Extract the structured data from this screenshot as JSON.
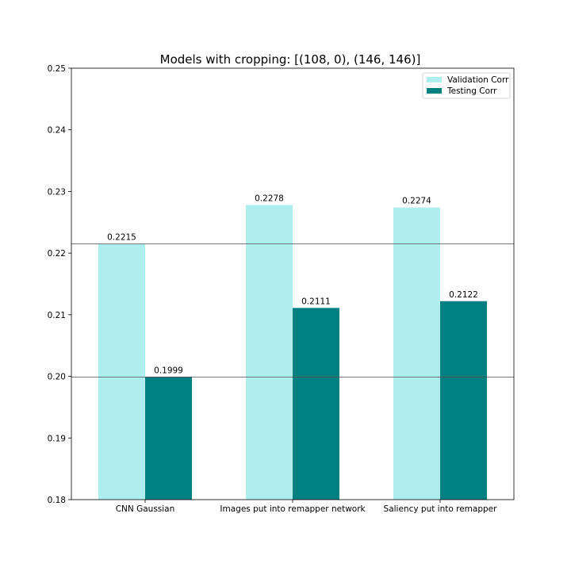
{
  "chart_data": {
    "type": "bar",
    "title": "Models with cropping: [(108, 0), (146, 146)]",
    "xlabel": "",
    "ylabel": "",
    "categories": [
      "CNN Gaussian",
      "Images put into remapper network",
      "Saliency put into remapper"
    ],
    "series": [
      {
        "name": "Validation Corr",
        "color": "#afeeee",
        "values": [
          0.2215,
          0.2278,
          0.2274
        ],
        "labels": [
          "0.2215",
          "0.2278",
          "0.2274"
        ]
      },
      {
        "name": "Testing Corr",
        "color": "#008080",
        "values": [
          0.1999,
          0.2111,
          0.2122
        ],
        "labels": [
          "0.1999",
          "0.2111",
          "0.2122"
        ]
      }
    ],
    "ylim": [
      0.18,
      0.25
    ],
    "yticks": [
      0.18,
      0.19,
      0.2,
      0.21,
      0.22,
      0.23,
      0.24,
      0.25
    ],
    "ytick_labels": [
      "0.18",
      "0.19",
      "0.20",
      "0.21",
      "0.22",
      "0.23",
      "0.24",
      "0.25"
    ],
    "reference_lines": [
      0.2215,
      0.1999
    ],
    "legend_position": "top-right",
    "grid": false
  }
}
